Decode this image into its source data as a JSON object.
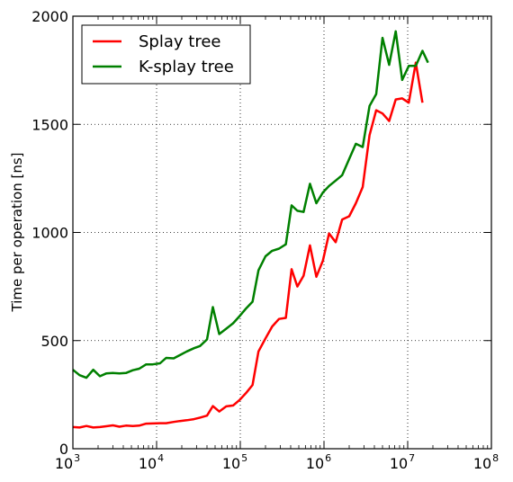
{
  "chart_data": {
    "type": "line",
    "xscale": "log",
    "xlim": [
      1000,
      100000000
    ],
    "ylim": [
      0,
      2000
    ],
    "grid": true,
    "legend_position": "top-left",
    "ylabel": "Time per operation [ns]",
    "xlabel": "",
    "title": "",
    "x_ticks": [
      {
        "base": "10",
        "exp": "3"
      },
      {
        "base": "10",
        "exp": "4"
      },
      {
        "base": "10",
        "exp": "5"
      },
      {
        "base": "10",
        "exp": "6"
      },
      {
        "base": "10",
        "exp": "7"
      },
      {
        "base": "10",
        "exp": "8"
      }
    ],
    "y_ticks": [
      "0",
      "500",
      "1000",
      "1500",
      "2000"
    ],
    "series": [
      {
        "name": "Splay tree",
        "color": "#ff0000",
        "points": [
          [
            1000,
            100
          ],
          [
            1200,
            98
          ],
          [
            1450,
            105
          ],
          [
            1750,
            98
          ],
          [
            2100,
            100
          ],
          [
            2500,
            104
          ],
          [
            3000,
            108
          ],
          [
            3600,
            102
          ],
          [
            4300,
            107
          ],
          [
            5200,
            105
          ],
          [
            6200,
            107
          ],
          [
            7500,
            116
          ],
          [
            9000,
            117
          ],
          [
            11000,
            118
          ],
          [
            13000,
            118
          ],
          [
            16000,
            124
          ],
          [
            19000,
            128
          ],
          [
            23000,
            132
          ],
          [
            28000,
            137
          ],
          [
            33000,
            144
          ],
          [
            40000,
            153
          ],
          [
            47000,
            197
          ],
          [
            56000,
            172
          ],
          [
            68000,
            196
          ],
          [
            82000,
            200
          ],
          [
            99000,
            227
          ],
          [
            118000,
            259
          ],
          [
            140000,
            295
          ],
          [
            165000,
            450
          ],
          [
            200000,
            510
          ],
          [
            240000,
            565
          ],
          [
            290000,
            600
          ],
          [
            350000,
            605
          ],
          [
            410000,
            830
          ],
          [
            480000,
            750
          ],
          [
            570000,
            800
          ],
          [
            680000,
            940
          ],
          [
            810000,
            795
          ],
          [
            970000,
            870
          ],
          [
            1150000,
            995
          ],
          [
            1380000,
            955
          ],
          [
            1650000,
            1060
          ],
          [
            2000000,
            1075
          ],
          [
            2400000,
            1135
          ],
          [
            2900000,
            1210
          ],
          [
            3500000,
            1450
          ],
          [
            4200000,
            1565
          ],
          [
            5000000,
            1550
          ],
          [
            6000000,
            1515
          ],
          [
            7200000,
            1615
          ],
          [
            8600000,
            1620
          ],
          [
            10300000,
            1600
          ],
          [
            12500000,
            1785
          ],
          [
            15000000,
            1600
          ]
        ]
      },
      {
        "name": "K-splay tree",
        "color": "#008000",
        "points": [
          [
            1000,
            365
          ],
          [
            1200,
            340
          ],
          [
            1450,
            328
          ],
          [
            1750,
            365
          ],
          [
            2100,
            335
          ],
          [
            2500,
            348
          ],
          [
            3000,
            350
          ],
          [
            3600,
            348
          ],
          [
            4300,
            350
          ],
          [
            5200,
            363
          ],
          [
            6200,
            370
          ],
          [
            7500,
            390
          ],
          [
            9000,
            390
          ],
          [
            11000,
            395
          ],
          [
            13000,
            420
          ],
          [
            16000,
            418
          ],
          [
            19000,
            433
          ],
          [
            23000,
            450
          ],
          [
            28000,
            465
          ],
          [
            33000,
            475
          ],
          [
            40000,
            505
          ],
          [
            47000,
            655
          ],
          [
            56000,
            530
          ],
          [
            68000,
            555
          ],
          [
            82000,
            580
          ],
          [
            99000,
            615
          ],
          [
            118000,
            650
          ],
          [
            140000,
            680
          ],
          [
            165000,
            825
          ],
          [
            200000,
            890
          ],
          [
            240000,
            915
          ],
          [
            290000,
            925
          ],
          [
            350000,
            945
          ],
          [
            410000,
            1125
          ],
          [
            480000,
            1100
          ],
          [
            570000,
            1095
          ],
          [
            680000,
            1225
          ],
          [
            810000,
            1135
          ],
          [
            970000,
            1185
          ],
          [
            1150000,
            1215
          ],
          [
            1380000,
            1240
          ],
          [
            1650000,
            1265
          ],
          [
            2000000,
            1340
          ],
          [
            2400000,
            1410
          ],
          [
            2900000,
            1395
          ],
          [
            3500000,
            1585
          ],
          [
            4200000,
            1640
          ],
          [
            5000000,
            1900
          ],
          [
            6000000,
            1775
          ],
          [
            7200000,
            1930
          ],
          [
            8600000,
            1705
          ],
          [
            10300000,
            1770
          ],
          [
            12500000,
            1770
          ],
          [
            15000000,
            1840
          ],
          [
            17500000,
            1785
          ]
        ]
      }
    ]
  }
}
